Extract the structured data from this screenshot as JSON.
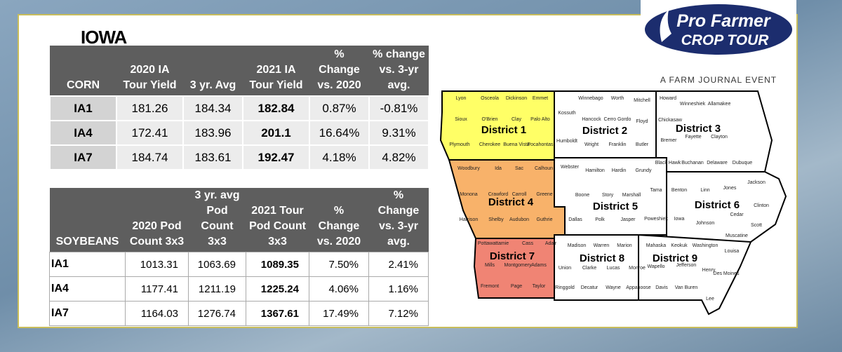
{
  "logo": {
    "name": "Pro Farmer",
    "product": "CROP TOUR",
    "tagline": "A FARM JOURNAL EVENT"
  },
  "title": "IOWA",
  "corn_table": {
    "header": [
      "CORN",
      "2020 IA\nTour Yield",
      "3 yr. Avg",
      "2021 IA\nTour Yield",
      "% Change\nvs. 2020",
      "% change\nvs. 3-yr\navg."
    ],
    "rows": [
      [
        "IA1",
        "181.26",
        "184.34",
        "182.84",
        "0.87%",
        "-0.81%"
      ],
      [
        "IA4",
        "172.41",
        "183.96",
        "201.1",
        "16.64%",
        "9.31%"
      ],
      [
        "IA7",
        "184.74",
        "183.61",
        "192.47",
        "4.18%",
        "4.82%"
      ]
    ]
  },
  "soybean_table": {
    "header": [
      "SOYBEANS",
      "2020  Pod\nCount 3x3",
      "3 yr. avg\nPod Count\n3x3",
      "2021  Tour\nPod Count\n3x3",
      "% Change\nvs. 2020",
      "% Change\nvs. 3-yr\navg."
    ],
    "rows": [
      [
        "IA1",
        "1013.31",
        "1063.69",
        "1089.35",
        "7.50%",
        "2.41%"
      ],
      [
        "IA4",
        "1177.41",
        "1211.19",
        "1225.24",
        "4.06%",
        "1.16%"
      ],
      [
        "IA7",
        "1164.03",
        "1276.74",
        "1367.61",
        "17.49%",
        "7.12%"
      ]
    ]
  },
  "map": {
    "districts": [
      {
        "label": "District 1",
        "counties": [
          "Lyon",
          "Osceola",
          "Dickinson",
          "Emmet",
          "Sioux",
          "O'Brien",
          "Clay",
          "Palo Alto",
          "Plymouth",
          "Cherokee",
          "Buena Vista",
          "Pocahontas"
        ]
      },
      {
        "label": "District 2",
        "counties": [
          "Winnebago",
          "Worth",
          "Mitchell",
          "Kossuth",
          "Hancock",
          "Cerro Gordo",
          "Floyd",
          "Humboldt",
          "Wright",
          "Franklin",
          "Butler"
        ]
      },
      {
        "label": "District 3",
        "counties": [
          "Howard",
          "Winneshiek",
          "Allamakee",
          "Chickasaw",
          "Fayette",
          "Clayton",
          "Bremer",
          "Black Hawk",
          "Buchanan",
          "Delaware",
          "Dubuque"
        ]
      },
      {
        "label": "District 4",
        "counties": [
          "Woodbury",
          "Ida",
          "Sac",
          "Calhoun",
          "Monona",
          "Crawford",
          "Carroll",
          "Greene",
          "Harrison",
          "Shelby",
          "Audubon",
          "Guthrie"
        ]
      },
      {
        "label": "District 5",
        "counties": [
          "Webster",
          "Hamilton",
          "Hardin",
          "Grundy",
          "Boone",
          "Story",
          "Marshall",
          "Tama",
          "Dallas",
          "Polk",
          "Jasper",
          "Poweshiek"
        ]
      },
      {
        "label": "District 6",
        "counties": [
          "Benton",
          "Linn",
          "Jones",
          "Jackson",
          "Clinton",
          "Cedar",
          "Iowa",
          "Johnson",
          "Scott",
          "Muscatine"
        ]
      },
      {
        "label": "District 7",
        "counties": [
          "Pottawattamie",
          "Cass",
          "Adair",
          "Mills",
          "Montgomery",
          "Adams",
          "Fremont",
          "Page",
          "Taylor"
        ]
      },
      {
        "label": "District 8",
        "counties": [
          "Madison",
          "Warren",
          "Marion",
          "Union",
          "Clarke",
          "Lucas",
          "Monroe",
          "Ringgold",
          "Decatur",
          "Wayne",
          "Appanoose"
        ]
      },
      {
        "label": "District 9",
        "counties": [
          "Mahaska",
          "Keokuk",
          "Washington",
          "Louisa",
          "Wapello",
          "Jefferson",
          "Henry",
          "Des Moines",
          "Davis",
          "Van Buren",
          "Lee"
        ]
      }
    ]
  }
}
